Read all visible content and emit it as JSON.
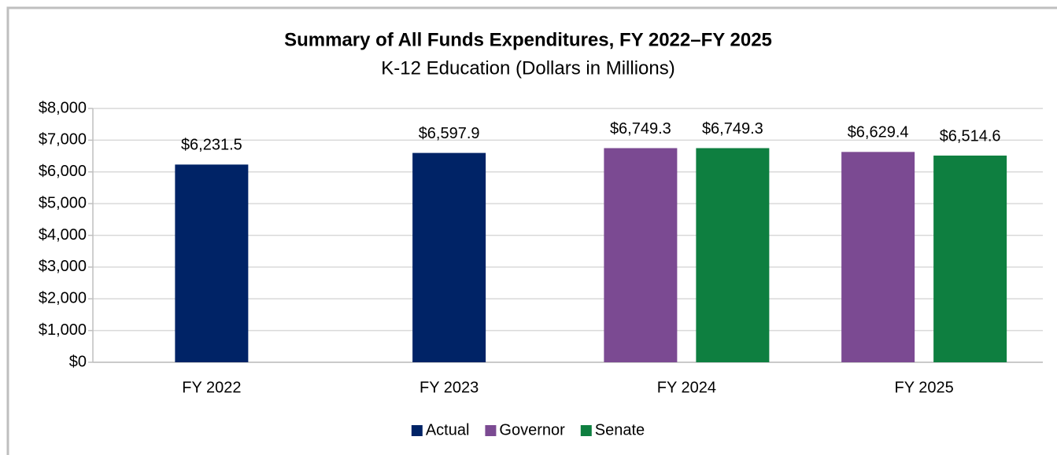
{
  "chart_data": {
    "type": "bar",
    "title": "Summary of All Funds Expenditures, FY 2022–FY 2025",
    "subtitle": "K-12 Education (Dollars in Millions)",
    "categories": [
      "FY 2022",
      "FY 2023",
      "FY 2024",
      "FY 2025"
    ],
    "series": [
      {
        "name": "Actual",
        "color": "#002366",
        "values": [
          6231.5,
          6597.9,
          null,
          null
        ],
        "value_labels": [
          "$6,231.5",
          "$6,597.9",
          null,
          null
        ]
      },
      {
        "name": "Governor",
        "color": "#7b4a92",
        "values": [
          null,
          null,
          6749.3,
          6629.4
        ],
        "value_labels": [
          null,
          null,
          "$6,749.3",
          "$6,629.4"
        ]
      },
      {
        "name": "Senate",
        "color": "#0e7f40",
        "values": [
          null,
          null,
          6749.3,
          6514.6
        ],
        "value_labels": [
          null,
          null,
          "$6,749.3",
          "$6,514.6"
        ]
      }
    ],
    "ylim": [
      0,
      8000
    ],
    "yticks": [
      {
        "value": 0,
        "label": "$0"
      },
      {
        "value": 1000,
        "label": "$1,000"
      },
      {
        "value": 2000,
        "label": "$2,000"
      },
      {
        "value": 3000,
        "label": "$3,000"
      },
      {
        "value": 4000,
        "label": "$4,000"
      },
      {
        "value": 5000,
        "label": "$5,000"
      },
      {
        "value": 6000,
        "label": "$6,000"
      },
      {
        "value": 7000,
        "label": "$7,000"
      },
      {
        "value": 8000,
        "label": "$8,000"
      }
    ],
    "grid": true,
    "legend": "bottom"
  }
}
